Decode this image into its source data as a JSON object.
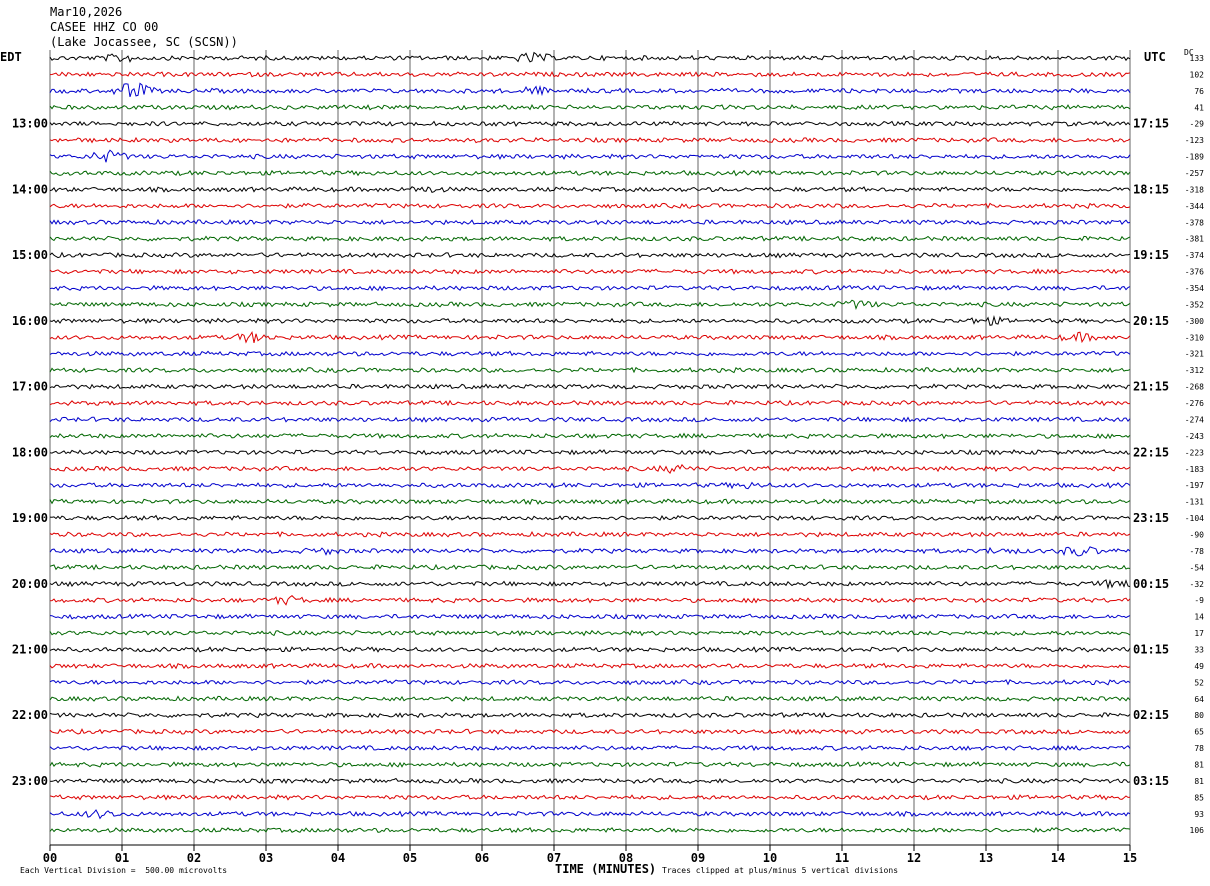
{
  "header": {
    "date": "Mar10,2026",
    "station": "CASEE HHZ CO 00",
    "location": "(Lake Jocassee, SC (SCSN))"
  },
  "left_timezone": "EDT",
  "right_timezone": "UTC",
  "dc_header": "DC",
  "colors": {
    "trace_cycle": [
      "#000000",
      "#dd0000",
      "#0000cc",
      "#006600"
    ],
    "grid": "#000000"
  },
  "chart_data": {
    "type": "line",
    "x_axis": {
      "label": "TIME (MINUTES)",
      "range": [
        0,
        15
      ],
      "ticks": [
        "00",
        "01",
        "02",
        "03",
        "04",
        "05",
        "06",
        "07",
        "08",
        "09",
        "10",
        "11",
        "12",
        "13",
        "14",
        "15"
      ]
    },
    "left_time_labels": [
      "13:00",
      "14:00",
      "15:00",
      "16:00",
      "17:00",
      "18:00",
      "19:00",
      "20:00",
      "21:00",
      "22:00",
      "23:00"
    ],
    "right_time_labels": [
      "17:15",
      "18:15",
      "19:15",
      "20:15",
      "21:15",
      "22:15",
      "23:15",
      "00:15",
      "01:15",
      "02:15",
      "03:15"
    ],
    "dc_offsets": [
      133,
      102,
      76,
      41,
      -29,
      -123,
      -189,
      -257,
      -318,
      -344,
      -378,
      -381,
      -374,
      -376,
      -354,
      -352,
      -300,
      -310,
      -321,
      -312,
      -268,
      -276,
      -274,
      -243,
      -223,
      -183,
      -197,
      -131,
      -104,
      -90,
      -78,
      -54,
      -32,
      -9,
      14,
      17,
      33,
      49,
      52,
      64,
      80,
      65,
      78,
      81,
      81,
      85,
      93,
      106
    ],
    "trace_count": 48,
    "events": [
      {
        "trace": 0,
        "minute": 1.0,
        "amp": 3
      },
      {
        "trace": 0,
        "minute": 6.7,
        "amp": 4
      },
      {
        "trace": 2,
        "minute": 1.15,
        "amp": 8
      },
      {
        "trace": 2,
        "minute": 6.7,
        "amp": 3
      },
      {
        "trace": 6,
        "minute": 0.8,
        "amp": 5
      },
      {
        "trace": 8,
        "minute": 5.2,
        "amp": 2
      },
      {
        "trace": 15,
        "minute": 11.2,
        "amp": 3
      },
      {
        "trace": 16,
        "minute": 13.0,
        "amp": 3
      },
      {
        "trace": 17,
        "minute": 2.8,
        "amp": 4
      },
      {
        "trace": 17,
        "minute": 14.3,
        "amp": 3
      },
      {
        "trace": 25,
        "minute": 8.7,
        "amp": 3
      },
      {
        "trace": 26,
        "minute": 9.7,
        "amp": 2
      },
      {
        "trace": 30,
        "minute": 3.8,
        "amp": 2
      },
      {
        "trace": 30,
        "minute": 14.3,
        "amp": 4
      },
      {
        "trace": 30,
        "minute": 13.2,
        "amp": 2
      },
      {
        "trace": 32,
        "minute": 14.8,
        "amp": 3
      },
      {
        "trace": 33,
        "minute": 3.3,
        "amp": 3
      },
      {
        "trace": 46,
        "minute": 0.7,
        "amp": 3
      }
    ]
  },
  "footer": {
    "scale_note": "Each Vertical Division =  500.00 microvolts",
    "clip_note": "Traces clipped at plus/minus 5 vertical divisions"
  }
}
